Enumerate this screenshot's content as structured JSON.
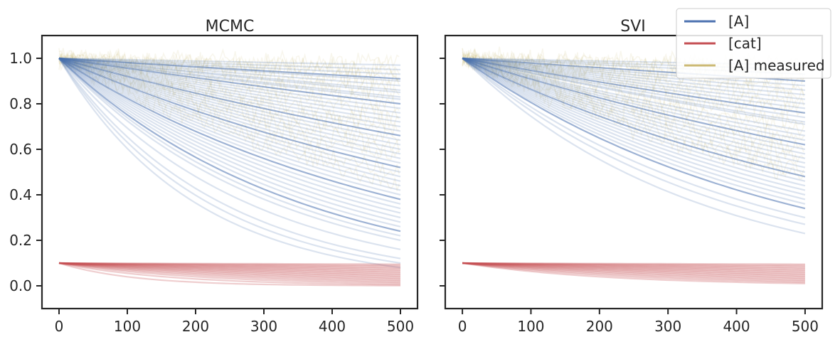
{
  "chart_data": [
    {
      "type": "line",
      "title": "MCMC",
      "xlim": [
        -25,
        525
      ],
      "ylim": [
        -0.1,
        1.1
      ],
      "x_ticks": [
        0,
        100,
        200,
        300,
        400,
        500
      ],
      "y_ticks": [
        0.0,
        0.2,
        0.4,
        0.6,
        0.8,
        1.0
      ],
      "x_tick_labels": [
        "0",
        "100",
        "200",
        "300",
        "400",
        "500"
      ],
      "y_tick_labels": [
        "0.0",
        "0.2",
        "0.4",
        "0.6",
        "0.8",
        "1.0"
      ],
      "series": [
        {
          "name": "[A]",
          "start": 1.0,
          "end_values_at_500": [
            0.97,
            0.95,
            0.93,
            0.91,
            0.9,
            0.88,
            0.86,
            0.85,
            0.83,
            0.82,
            0.8,
            0.78,
            0.76,
            0.74,
            0.72,
            0.7,
            0.68,
            0.66,
            0.64,
            0.62,
            0.6,
            0.58,
            0.56,
            0.54,
            0.52,
            0.5,
            0.48,
            0.46,
            0.44,
            0.42,
            0.4,
            0.38,
            0.36,
            0.34,
            0.32,
            0.3,
            0.28,
            0.26,
            0.24,
            0.22,
            0.2,
            0.16,
            0.12,
            0.1,
            0.08
          ]
        },
        {
          "name": "[cat]",
          "start": 0.1,
          "end_values_at_500": [
            0.095,
            0.09,
            0.085,
            0.08,
            0.075,
            0.07,
            0.065,
            0.06,
            0.055,
            0.05,
            0.045,
            0.04,
            0.035,
            0.03,
            0.025,
            0.02,
            0.015,
            0.01,
            0.005,
            0.0
          ]
        },
        {
          "name": "[A] measured",
          "start": 1.0,
          "end_values_at_500": [
            0.98,
            0.96,
            0.94,
            0.92,
            0.9,
            0.87,
            0.84,
            0.8,
            0.76,
            0.72,
            0.68,
            0.64,
            0.6,
            0.56,
            0.5,
            0.45
          ]
        }
      ]
    },
    {
      "type": "line",
      "title": "SVI",
      "xlim": [
        -25,
        525
      ],
      "ylim": [
        -0.1,
        1.1
      ],
      "x_ticks": [
        0,
        100,
        200,
        300,
        400,
        500
      ],
      "y_ticks": [
        0.0,
        0.2,
        0.4,
        0.6,
        0.8,
        1.0
      ],
      "x_tick_labels": [
        "0",
        "100",
        "200",
        "300",
        "400",
        "500"
      ],
      "y_tick_labels": [],
      "series": [
        {
          "name": "[A]",
          "start": 1.0,
          "end_values_at_500": [
            0.97,
            0.95,
            0.93,
            0.9,
            0.88,
            0.86,
            0.84,
            0.82,
            0.8,
            0.78,
            0.76,
            0.74,
            0.72,
            0.71,
            0.68,
            0.66,
            0.64,
            0.62,
            0.6,
            0.58,
            0.56,
            0.54,
            0.52,
            0.5,
            0.48,
            0.46,
            0.44,
            0.42,
            0.4,
            0.38,
            0.36,
            0.34,
            0.3,
            0.27,
            0.23
          ]
        },
        {
          "name": "[cat]",
          "start": 0.1,
          "end_values_at_500": [
            0.095,
            0.09,
            0.085,
            0.08,
            0.075,
            0.07,
            0.065,
            0.06,
            0.055,
            0.05,
            0.045,
            0.04,
            0.035,
            0.03,
            0.025,
            0.02,
            0.015,
            0.01
          ]
        },
        {
          "name": "[A] measured",
          "start": 1.0,
          "end_values_at_500": [
            0.98,
            0.96,
            0.94,
            0.92,
            0.9,
            0.87,
            0.84,
            0.8,
            0.76,
            0.72,
            0.68,
            0.64,
            0.6,
            0.56,
            0.52,
            0.48
          ]
        }
      ]
    }
  ],
  "legend": {
    "placement": "upper-right",
    "entries": [
      {
        "label": "[A]",
        "color": "#4c72b0"
      },
      {
        "label": "[cat]",
        "color": "#c44e52"
      },
      {
        "label": "[A] measured",
        "color": "#ccb974"
      }
    ]
  }
}
